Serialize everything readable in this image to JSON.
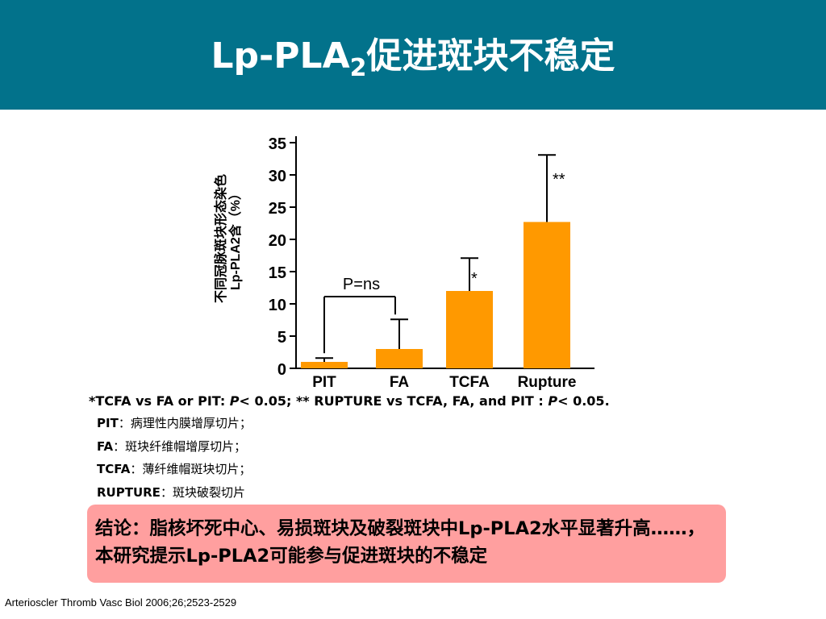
{
  "slide": {
    "title_main": "Lp-PLA",
    "title_sub": "2",
    "title_rest": "促进斑块不稳定",
    "header_color": "#02728b",
    "bar_color": "#ff9900",
    "conclusion_bg": "#ff9f9f"
  },
  "chart_data": {
    "type": "bar",
    "categories": [
      "PIT",
      "FA",
      "TCFA",
      "Rupture"
    ],
    "values": [
      1,
      3,
      12,
      22.7
    ],
    "errors": [
      0.6,
      4.6,
      5.1,
      10.4
    ],
    "ylabel_line1": "不同冠脉斑块形态染色",
    "ylabel_line2": "Lp-PLA2含（%）",
    "ylim": [
      0,
      35
    ],
    "yticks": [
      "0",
      "5",
      "10",
      "15",
      "20",
      "25",
      "30",
      "35"
    ],
    "ytick_values": [
      0,
      5,
      10,
      15,
      20,
      25,
      30,
      35
    ],
    "annotations": [
      "*",
      "**"
    ],
    "bracket_label": "P=ns"
  },
  "notes": {
    "sig_a": "*TCFA vs FA or PIT: ",
    "sig_p1": "P",
    "sig_b": "< 0.05; ** RUPTURE vs TCFA, FA, and PIT : ",
    "sig_p2": "P",
    "sig_c": "< 0.05.",
    "definitions": [
      {
        "term": "PIT",
        "desc": "：病理性内膜增厚切片；"
      },
      {
        "term": "FA",
        "desc": "：斑块纤维帽增厚切片；"
      },
      {
        "term": "TCFA",
        "desc": "：薄纤维帽斑块切片；"
      },
      {
        "term": "RUPTURE",
        "desc": "：斑块破裂切片"
      }
    ]
  },
  "conclusion": "结论：脂核坏死中心、易损斑块及破裂斑块中Lp-PLA2水平显著升高……，本研究提示Lp-PLA2可能参与促进斑块的不稳定",
  "citation": "Arterioscler Thromb Vasc Biol 2006;26;2523-2529"
}
